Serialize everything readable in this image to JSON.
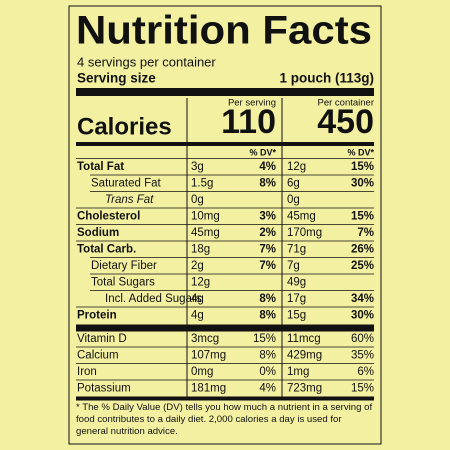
{
  "title": "Nutrition Facts",
  "servings": "4 servings per container",
  "serving_size": {
    "label": "Serving size",
    "value": "1 pouch (113g)"
  },
  "columns": [
    "Per serving",
    "Per container"
  ],
  "calories": {
    "label": "Calories",
    "serving": "110",
    "container": "450"
  },
  "dv_header": [
    "% DV*",
    "% DV*"
  ],
  "rows": [
    {
      "name": "Total Fat",
      "serving": {
        "amount": "3g",
        "dv": "4%"
      },
      "container": {
        "amount": "12g",
        "dv": "15%"
      }
    },
    {
      "name": "Saturated Fat",
      "serving": {
        "amount": "1.5g",
        "dv": "8%"
      },
      "container": {
        "amount": "6g",
        "dv": "30%"
      }
    },
    {
      "name": "Trans Fat",
      "serving": {
        "amount": "0g"
      },
      "container": {
        "amount": "0g"
      }
    },
    {
      "name": "Cholesterol",
      "serving": {
        "amount": "10mg",
        "dv": "3%"
      },
      "container": {
        "amount": "45mg",
        "dv": "15%"
      }
    },
    {
      "name": "Sodium",
      "serving": {
        "amount": "45mg",
        "dv": "2%"
      },
      "container": {
        "amount": "170mg",
        "dv": "7%"
      }
    },
    {
      "name": "Total Carb.",
      "serving": {
        "amount": "18g",
        "dv": "7%"
      },
      "container": {
        "amount": "71g",
        "dv": "26%"
      }
    },
    {
      "name": "Dietary Fiber",
      "serving": {
        "amount": "2g",
        "dv": "7%"
      },
      "container": {
        "amount": "7g",
        "dv": "25%"
      }
    },
    {
      "name": "Total Sugars",
      "serving": {
        "amount": "12g"
      },
      "container": {
        "amount": "49g"
      }
    },
    {
      "name": "Incl. Added Sugars",
      "serving": {
        "amount": "4g",
        "dv": "8%"
      },
      "container": {
        "amount": "17g",
        "dv": "34%"
      }
    },
    {
      "name": "Protein",
      "serving": {
        "amount": "4g",
        "dv": "8%"
      },
      "container": {
        "amount": "15g",
        "dv": "30%"
      }
    },
    {
      "name": "Vitamin D",
      "serving": {
        "amount": "3mcg",
        "dv": "15%"
      },
      "container": {
        "amount": "11mcg",
        "dv": "60%"
      }
    },
    {
      "name": "Calcium",
      "serving": {
        "amount": "107mg",
        "dv": "8%"
      },
      "container": {
        "amount": "429mg",
        "dv": "35%"
      }
    },
    {
      "name": "Iron",
      "serving": {
        "amount": "0mg",
        "dv": "0%"
      },
      "container": {
        "amount": "1mg",
        "dv": "6%"
      }
    },
    {
      "name": "Potassium",
      "serving": {
        "amount": "181mg",
        "dv": "4%"
      },
      "container": {
        "amount": "723mg",
        "dv": "15%"
      }
    }
  ],
  "footnote": "* The % Daily Value (DV) tells you how much a nutrient in a serving of food contributes to a daily diet. 2,000 calories a day is used for general nutrition advice."
}
